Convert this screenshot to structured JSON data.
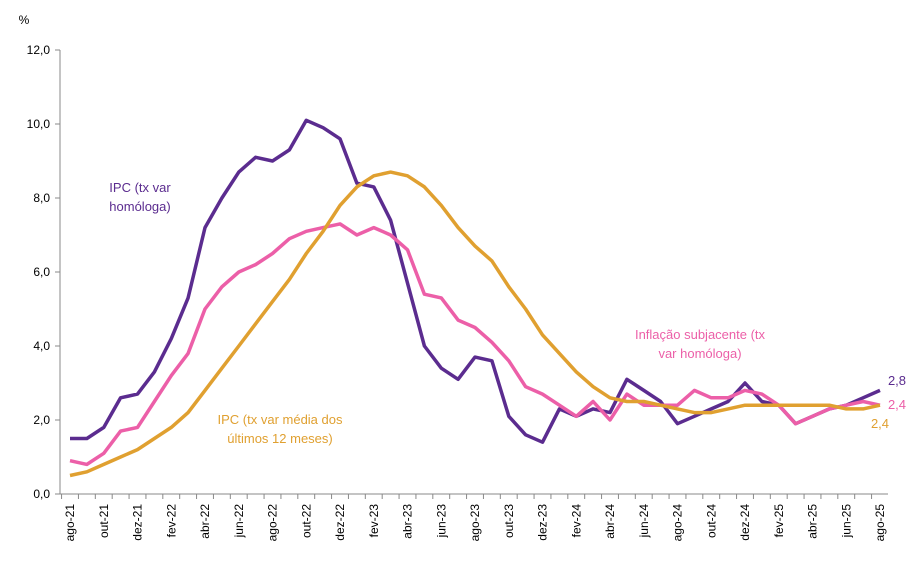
{
  "chart_data": {
    "type": "line",
    "y_unit": "%",
    "categories": [
      "ago-21",
      null,
      "out-21",
      null,
      "dez-21",
      null,
      "fev-22",
      null,
      "abr-22",
      null,
      "jun-22",
      null,
      "ago-22",
      null,
      "out-22",
      null,
      "dez-22",
      null,
      "fev-23",
      null,
      "abr-23",
      null,
      "jun-23",
      null,
      "ago-23",
      null,
      "out-23",
      null,
      "dez-23",
      null,
      "fev-24",
      null,
      "abr-24",
      null,
      "jun-24",
      null,
      "ago-24",
      null,
      "out-24",
      null,
      "dez-24",
      null,
      "fev-25",
      null,
      "abr-25",
      null,
      "jun-25",
      null,
      "ago-25"
    ],
    "series": [
      {
        "name": "IPC (tx var homóloga)",
        "color": "#5b2c8f",
        "values": [
          1.5,
          1.5,
          1.8,
          2.6,
          2.7,
          3.3,
          4.2,
          5.3,
          7.2,
          8.0,
          8.7,
          9.1,
          9.0,
          9.3,
          10.1,
          9.9,
          9.6,
          8.4,
          8.3,
          7.4,
          5.7,
          4.0,
          3.4,
          3.1,
          3.7,
          3.6,
          2.1,
          1.6,
          1.4,
          2.3,
          2.1,
          2.3,
          2.2,
          3.1,
          2.8,
          2.5,
          1.9,
          2.1,
          2.3,
          2.5,
          3.0,
          2.5,
          2.4,
          1.9,
          2.1,
          2.3,
          2.4,
          2.6,
          2.8
        ],
        "value_labels": [
          null,
          null,
          null,
          null,
          null,
          null,
          null,
          null,
          null,
          null,
          null,
          null,
          null,
          null,
          null,
          null,
          null,
          null,
          null,
          null,
          null,
          null,
          null,
          null,
          null,
          null,
          null,
          null,
          null,
          null,
          null,
          null,
          null,
          null,
          null,
          null,
          null,
          null,
          null,
          null,
          null,
          null,
          null,
          null,
          null,
          null,
          null,
          null,
          "2,8"
        ]
      },
      {
        "name": "Inflação subjacente (tx var homóloga)",
        "color": "#ec5fa8",
        "values": [
          0.9,
          0.8,
          1.1,
          1.7,
          1.8,
          2.5,
          3.2,
          3.8,
          5.0,
          5.6,
          6.0,
          6.2,
          6.5,
          6.9,
          7.1,
          7.2,
          7.3,
          7.0,
          7.2,
          7.0,
          6.6,
          5.4,
          5.3,
          4.7,
          4.5,
          4.1,
          3.6,
          2.9,
          2.7,
          2.4,
          2.1,
          2.5,
          2.0,
          2.7,
          2.4,
          2.4,
          2.4,
          2.8,
          2.6,
          2.6,
          2.8,
          2.7,
          2.4,
          1.9,
          2.1,
          2.3,
          2.4,
          2.5,
          2.4
        ],
        "value_labels": [
          null,
          null,
          null,
          null,
          null,
          null,
          null,
          null,
          null,
          null,
          null,
          null,
          null,
          null,
          null,
          null,
          null,
          null,
          null,
          null,
          null,
          null,
          null,
          null,
          null,
          null,
          null,
          null,
          null,
          null,
          null,
          null,
          null,
          null,
          null,
          null,
          null,
          null,
          null,
          null,
          null,
          null,
          null,
          null,
          null,
          null,
          null,
          null,
          "2,4"
        ]
      },
      {
        "name": "IPC (tx var média dos últimos 12 meses)",
        "color": "#e0a030",
        "values": [
          0.5,
          0.6,
          0.8,
          1.0,
          1.2,
          1.5,
          1.8,
          2.2,
          2.8,
          3.4,
          4.0,
          4.6,
          5.2,
          5.8,
          6.5,
          7.1,
          7.8,
          8.3,
          8.6,
          8.7,
          8.6,
          8.3,
          7.8,
          7.2,
          6.7,
          6.3,
          5.6,
          5.0,
          4.3,
          3.8,
          3.3,
          2.9,
          2.6,
          2.5,
          2.5,
          2.4,
          2.3,
          2.2,
          2.2,
          2.3,
          2.4,
          2.4,
          2.4,
          2.4,
          2.4,
          2.4,
          2.3,
          2.3,
          2.4
        ],
        "value_labels": [
          null,
          null,
          null,
          null,
          null,
          null,
          null,
          null,
          null,
          null,
          null,
          null,
          null,
          null,
          null,
          null,
          null,
          null,
          null,
          null,
          null,
          null,
          null,
          null,
          null,
          null,
          null,
          null,
          null,
          null,
          null,
          null,
          null,
          null,
          null,
          null,
          null,
          null,
          null,
          null,
          null,
          null,
          null,
          null,
          null,
          null,
          null,
          null,
          "2,4"
        ]
      }
    ],
    "ylim": [
      0,
      12
    ],
    "yticks": [
      {
        "value": 0,
        "label": "0,0"
      },
      {
        "value": 2,
        "label": "2,0"
      },
      {
        "value": 4,
        "label": "4,0"
      },
      {
        "value": 6,
        "label": "6,0"
      },
      {
        "value": 8,
        "label": "8,0"
      },
      {
        "value": 10,
        "label": "10,0"
      },
      {
        "value": 12,
        "label": "12,0"
      }
    ],
    "grid": false
  }
}
